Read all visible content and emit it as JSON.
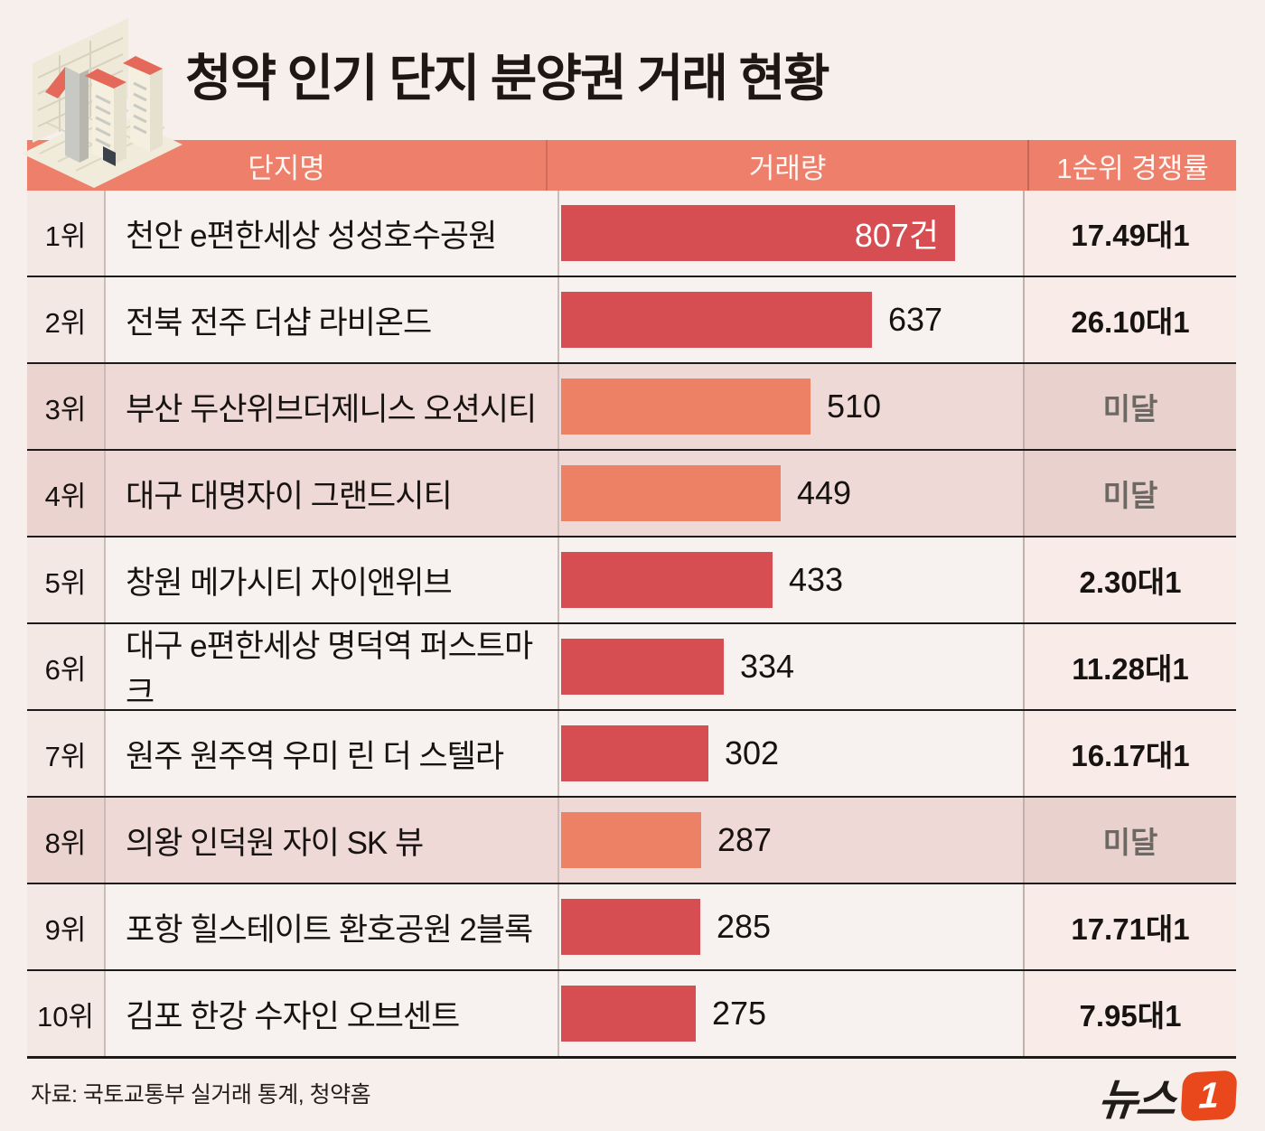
{
  "title": "청약 인기 단지 분양권 거래 현황",
  "columns": {
    "name": "단지명",
    "volume": "거래량",
    "ratio": "1순위 경쟁률"
  },
  "rows": [
    {
      "rank": "1위",
      "name": "천안 e편한세상 성성호수공원",
      "volume": 807,
      "volume_label": "807건",
      "ratio": "17.49대1",
      "shortfall": false,
      "label_inside": true
    },
    {
      "rank": "2위",
      "name": "전북 전주 더샵 라비온드",
      "volume": 637,
      "volume_label": "637",
      "ratio": "26.10대1",
      "shortfall": false,
      "label_inside": false
    },
    {
      "rank": "3위",
      "name": "부산 두산위브더제니스 오션시티",
      "volume": 510,
      "volume_label": "510",
      "ratio": "미달",
      "shortfall": true,
      "label_inside": false
    },
    {
      "rank": "4위",
      "name": "대구 대명자이 그랜드시티",
      "volume": 449,
      "volume_label": "449",
      "ratio": "미달",
      "shortfall": true,
      "label_inside": false
    },
    {
      "rank": "5위",
      "name": "창원 메가시티 자이앤위브",
      "volume": 433,
      "volume_label": "433",
      "ratio": "2.30대1",
      "shortfall": false,
      "label_inside": false
    },
    {
      "rank": "6위",
      "name": "대구 e편한세상 명덕역 퍼스트마크",
      "volume": 334,
      "volume_label": "334",
      "ratio": "11.28대1",
      "shortfall": false,
      "label_inside": false
    },
    {
      "rank": "7위",
      "name": "원주 원주역 우미 린 더 스텔라",
      "volume": 302,
      "volume_label": "302",
      "ratio": "16.17대1",
      "shortfall": false,
      "label_inside": false
    },
    {
      "rank": "8위",
      "name": "의왕 인덕원 자이 SK 뷰",
      "volume": 287,
      "volume_label": "287",
      "ratio": "미달",
      "shortfall": true,
      "label_inside": false
    },
    {
      "rank": "9위",
      "name": "포항 힐스테이트 환호공원 2블록",
      "volume": 285,
      "volume_label": "285",
      "ratio": "17.71대1",
      "shortfall": false,
      "label_inside": false
    },
    {
      "rank": "10위",
      "name": "김포 한강 수자인 오브센트",
      "volume": 275,
      "volume_label": "275",
      "ratio": "7.95대1",
      "shortfall": false,
      "label_inside": false
    }
  ],
  "source": "자료: 국토교통부 실거래 통계, 청약홈",
  "logo": {
    "text": "뉴스",
    "badge": "1"
  },
  "colors": {
    "background": "#f7efec",
    "header_bg": "#ee7f6a",
    "bar_red": "#d64d52",
    "bar_salmon": "#ed8166",
    "row_pink": "#eed9d7",
    "row_white": "#f7f2ef",
    "shortfall_text": "#6e6864",
    "separator": "#1d1b19",
    "logo_orange": "#e8481c"
  },
  "chart_data": {
    "type": "bar",
    "orientation": "horizontal",
    "title": "청약 인기 단지 분양권 거래 현황",
    "categories": [
      "천안 e편한세상 성성호수공원",
      "전북 전주 더샵 라비온드",
      "부산 두산위브더제니스 오션시티",
      "대구 대명자이 그랜드시티",
      "창원 메가시티 자이앤위브",
      "대구 e편한세상 명덕역 퍼스트마크",
      "원주 원주역 우미 린 더 스텔라",
      "의왕 인덕원 자이 SK 뷰",
      "포항 힐스테이트 환호공원 2블록",
      "김포 한강 수자인 오브센트"
    ],
    "ranks": [
      "1위",
      "2위",
      "3위",
      "4위",
      "5위",
      "6위",
      "7위",
      "8위",
      "9위",
      "10위"
    ],
    "values": [
      807,
      637,
      510,
      449,
      433,
      334,
      302,
      287,
      285,
      275
    ],
    "value_unit": "건",
    "series_label": "거래량",
    "competition_ratio_label": "1순위 경쟁률",
    "competition_ratios": [
      "17.49대1",
      "26.10대1",
      "미달",
      "미달",
      "2.30대1",
      "11.28대1",
      "16.17대1",
      "미달",
      "17.71대1",
      "7.95대1"
    ],
    "shortfall_rows": [
      "3위",
      "4위",
      "8위"
    ],
    "xlim": [
      0,
      807
    ],
    "grid": false,
    "legend": false,
    "source": "자료: 국토교통부 실거래 통계, 청약홈"
  }
}
